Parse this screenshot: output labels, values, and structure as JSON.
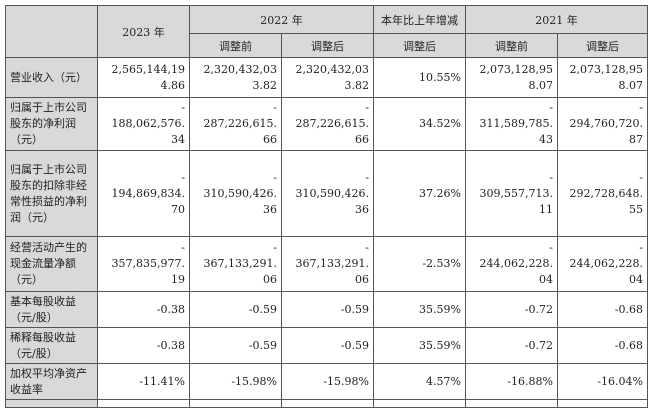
{
  "header": {
    "col_2023": "2023 年",
    "col_2022": "2022 年",
    "col_change": "本年比上年增减",
    "col_2021": "2021 年",
    "sub_before": "调整前",
    "sub_after": "调整后",
    "sub_change_after": "调整后"
  },
  "rows": [
    {
      "label": "营业收入（元）",
      "v2023": "2,565,144,19\n4.86",
      "v2022_before": "2,320,432,03\n3.82",
      "v2022_after": "2,320,432,03\n3.82",
      "change": "10.55%",
      "v2021_before": "2,073,128,95\n8.07",
      "v2021_after": "2,073,128,95\n8.07"
    },
    {
      "label": "归属于上市公司股东的净利润（元）",
      "v2023": "-\n188,062,576.\n34",
      "v2022_before": "-\n287,226,615.\n66",
      "v2022_after": "-\n287,226,615.\n66",
      "change": "34.52%",
      "v2021_before": "-\n311,589,785.\n43",
      "v2021_after": "-\n294,760,720.\n87"
    },
    {
      "label": "归属于上市公司股东的扣除非经常性损益的净利润（元）",
      "v2023": "-\n194,869,834.\n70",
      "v2022_before": "-\n310,590,426.\n36",
      "v2022_after": "-\n310,590,426.\n36",
      "change": "37.26%",
      "v2021_before": "-\n309,557,713.\n11",
      "v2021_after": "-\n292,728,648.\n55"
    },
    {
      "label": "经营活动产生的现金流量净额（元）",
      "v2023": "-\n357,835,977.\n19",
      "v2022_before": "-\n367,133,291.\n06",
      "v2022_after": "-\n367,133,291.\n06",
      "change": "-2.53%",
      "v2021_before": "-\n244,062,228.\n04",
      "v2021_after": "-\n244,062,228.\n04"
    },
    {
      "label": "基本每股收益（元/股）",
      "v2023": "-0.38",
      "v2022_before": "-0.59",
      "v2022_after": "-0.59",
      "change": "35.59%",
      "v2021_before": "-0.72",
      "v2021_after": "-0.68"
    },
    {
      "label": "稀释每股收益（元/股）",
      "v2023": "-0.38",
      "v2022_before": "-0.59",
      "v2022_after": "-0.59",
      "change": "35.59%",
      "v2021_before": "-0.72",
      "v2021_after": "-0.68"
    },
    {
      "label": "加权平均净资产收益率",
      "v2023": "-11.41%",
      "v2022_before": "-15.98%",
      "v2022_after": "-15.98%",
      "change": "4.57%",
      "v2021_before": "-16.88%",
      "v2021_after": "-16.04%"
    }
  ]
}
